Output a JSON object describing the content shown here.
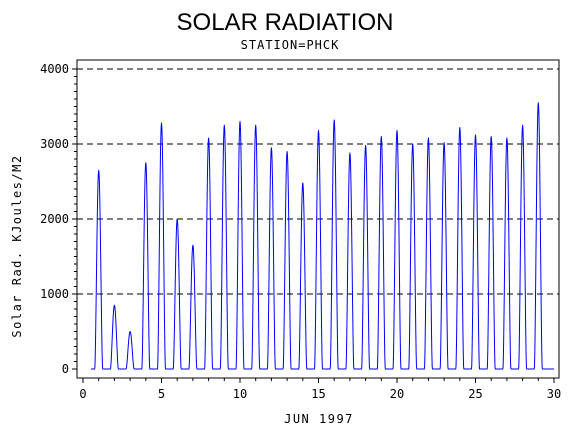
{
  "chart_data": {
    "type": "line",
    "title": "SOLAR RADIATION",
    "subtitle": "STATION=PHCK",
    "xlabel": "JUN 1997",
    "ylabel": "Solar Rad. KJoules/M2",
    "xlim": [
      0,
      30
    ],
    "ylim": [
      0,
      4000
    ],
    "x_ticks": [
      0,
      5,
      10,
      15,
      20,
      25,
      30
    ],
    "y_ticks": [
      0,
      1000,
      2000,
      3000,
      4000
    ],
    "grid": "horizontal dashed",
    "line_color": "#0000ff",
    "series": [
      {
        "daily_peaks": [
          {
            "day": 1,
            "peak": 2650
          },
          {
            "day": 2,
            "peak": 850
          },
          {
            "day": 3,
            "peak": 500
          },
          {
            "day": 4,
            "peak": 2750
          },
          {
            "day": 5,
            "peak": 3280
          },
          {
            "day": 6,
            "peak": 2000
          },
          {
            "day": 7,
            "peak": 1650
          },
          {
            "day": 8,
            "peak": 3080
          },
          {
            "day": 9,
            "peak": 3250
          },
          {
            "day": 10,
            "peak": 3300
          },
          {
            "day": 11,
            "peak": 3250
          },
          {
            "day": 12,
            "peak": 2950
          },
          {
            "day": 13,
            "peak": 2900
          },
          {
            "day": 14,
            "peak": 2480
          },
          {
            "day": 15,
            "peak": 3180
          },
          {
            "day": 16,
            "peak": 3320
          },
          {
            "day": 17,
            "peak": 2880
          },
          {
            "day": 18,
            "peak": 2980
          },
          {
            "day": 19,
            "peak": 3100
          },
          {
            "day": 20,
            "peak": 3180
          },
          {
            "day": 21,
            "peak": 3000
          },
          {
            "day": 22,
            "peak": 3080
          },
          {
            "day": 23,
            "peak": 3020
          },
          {
            "day": 24,
            "peak": 3220
          },
          {
            "day": 25,
            "peak": 3120
          },
          {
            "day": 26,
            "peak": 3100
          },
          {
            "day": 27,
            "peak": 3080
          },
          {
            "day": 28,
            "peak": 3250
          },
          {
            "day": 29,
            "peak": 3550
          }
        ]
      }
    ]
  }
}
